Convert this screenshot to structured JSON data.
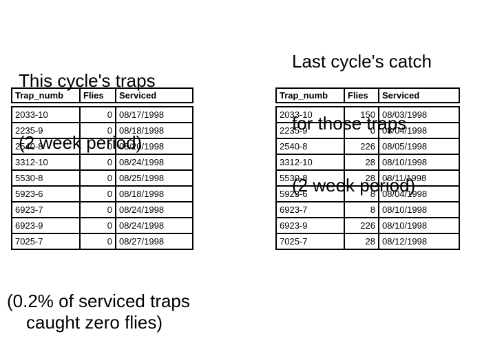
{
  "left_panel": {
    "title_line1": "This cycle's traps",
    "title_line2": "(2 week period)",
    "table": {
      "headers": [
        "Trap_numb",
        "Flies",
        "Serviced"
      ],
      "rows": [
        [
          "2033-10",
          "0",
          "08/17/1998"
        ],
        [
          "2235-9",
          "0",
          "08/18/1998"
        ],
        [
          "2540-8",
          "0",
          "08/20/1998"
        ],
        [
          "3312-10",
          "0",
          "08/24/1998"
        ],
        [
          "5530-8",
          "0",
          "08/25/1998"
        ],
        [
          "5923-6",
          "0",
          "08/18/1998"
        ],
        [
          "6923-7",
          "0",
          "08/24/1998"
        ],
        [
          "6923-9",
          "0",
          "08/24/1998"
        ],
        [
          "7025-7",
          "0",
          "08/27/1998"
        ]
      ]
    }
  },
  "right_panel": {
    "title_line1": "Last cycle's catch",
    "title_line2": "for those traps",
    "title_line3": "(2 week period)",
    "table": {
      "headers": [
        "Trap_numb",
        "Flies",
        "Serviced"
      ],
      "rows": [
        [
          "2033-10",
          "150",
          "08/03/1998"
        ],
        [
          "2235-9",
          "0",
          "08/04/1998"
        ],
        [
          "2540-8",
          "226",
          "08/05/1998"
        ],
        [
          "3312-10",
          "28",
          "08/10/1998"
        ],
        [
          "5530-8",
          "28",
          "08/11/1998"
        ],
        [
          "5923-6",
          "8",
          "08/04/1998"
        ],
        [
          "6923-7",
          "8",
          "08/10/1998"
        ],
        [
          "6923-9",
          "226",
          "08/10/1998"
        ],
        [
          "7025-7",
          "28",
          "08/12/1998"
        ]
      ]
    }
  },
  "footnote": {
    "line1": "(0.2% of serviced traps",
    "line2": "caught zero flies)"
  },
  "colors": {
    "ink": "#000000",
    "background": "#ffffff"
  }
}
